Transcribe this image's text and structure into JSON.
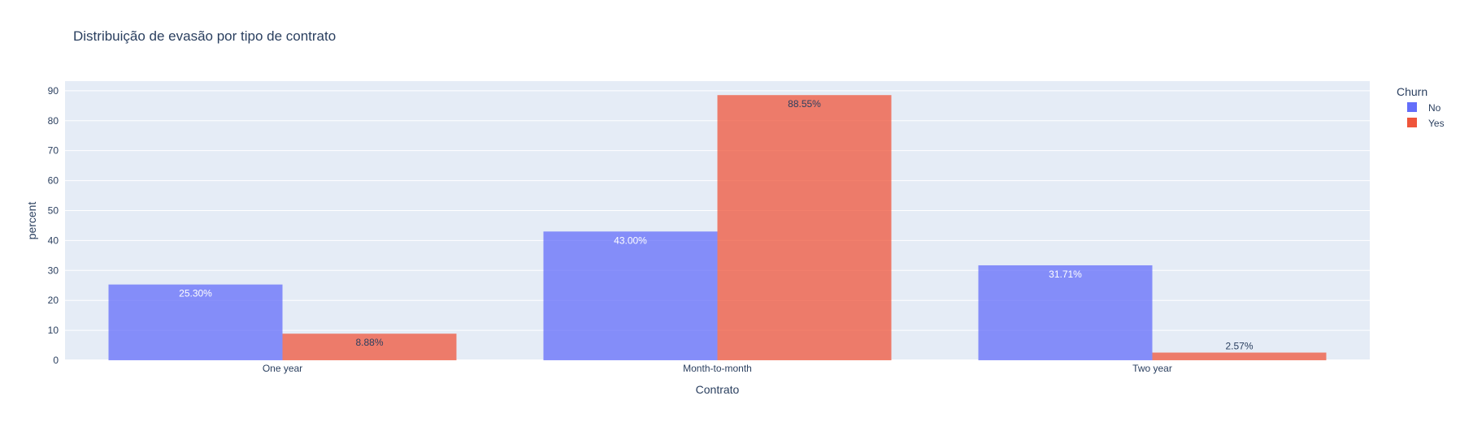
{
  "chart_data": {
    "type": "bar",
    "title": "Distribuição de evasão por tipo de contrato",
    "xlabel": "Contrato",
    "ylabel": "percent",
    "categories": [
      "One year",
      "Month-to-month",
      "Two year"
    ],
    "series": [
      {
        "name": "No",
        "values": [
          25.3,
          43.0,
          31.71
        ],
        "labels": [
          "25.30%",
          "43.00%",
          "31.71%"
        ],
        "color": "#636efa"
      },
      {
        "name": "Yes",
        "values": [
          8.88,
          88.55,
          2.57
        ],
        "labels": [
          "8.88%",
          "88.55%",
          "2.57%"
        ],
        "color": "#ef553b"
      }
    ],
    "ylim": [
      0,
      93.21
    ],
    "yticks": [
      0,
      10,
      20,
      30,
      40,
      50,
      60,
      70,
      80,
      90
    ],
    "legend": {
      "title": "Churn",
      "position": "top-right"
    },
    "grid": true,
    "barmode": "group",
    "plot_bgcolor": "#e5ecf6",
    "text_color": "#2a3f5f"
  }
}
